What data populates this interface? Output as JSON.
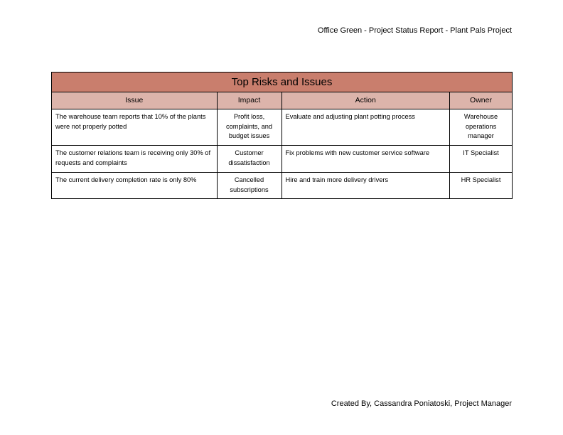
{
  "header_text": "Office Green - Project Status Report - Plant Pals Project",
  "footer_text": "Created By, Cassandra Poniatoski, Project Manager",
  "table": {
    "title": "Top Risks and Issues",
    "columns": [
      "Issue",
      "Impact",
      "Action",
      "Owner"
    ],
    "rows": [
      {
        "issue": "The warehouse team reports that 10% of the plants were not properly potted",
        "impact": "Profit loss, complaints, and budget issues",
        "action": "Evaluate and adjusting plant potting process",
        "owner": "Warehouse operations manager"
      },
      {
        "issue": "The customer relations team is receiving only 30% of requests and complaints",
        "impact": "Customer dissatisfaction",
        "action": "Fix problems with new customer service software",
        "owner": "IT Specialist"
      },
      {
        "issue": "The current delivery completion rate is only 80%",
        "impact": "Cancelled subscriptions",
        "action": "Hire and train more delivery drivers",
        "owner": "HR Specialist"
      }
    ]
  },
  "colors": {
    "title_bg": "#c97e6d",
    "header_bg": "#dcb4ab"
  }
}
